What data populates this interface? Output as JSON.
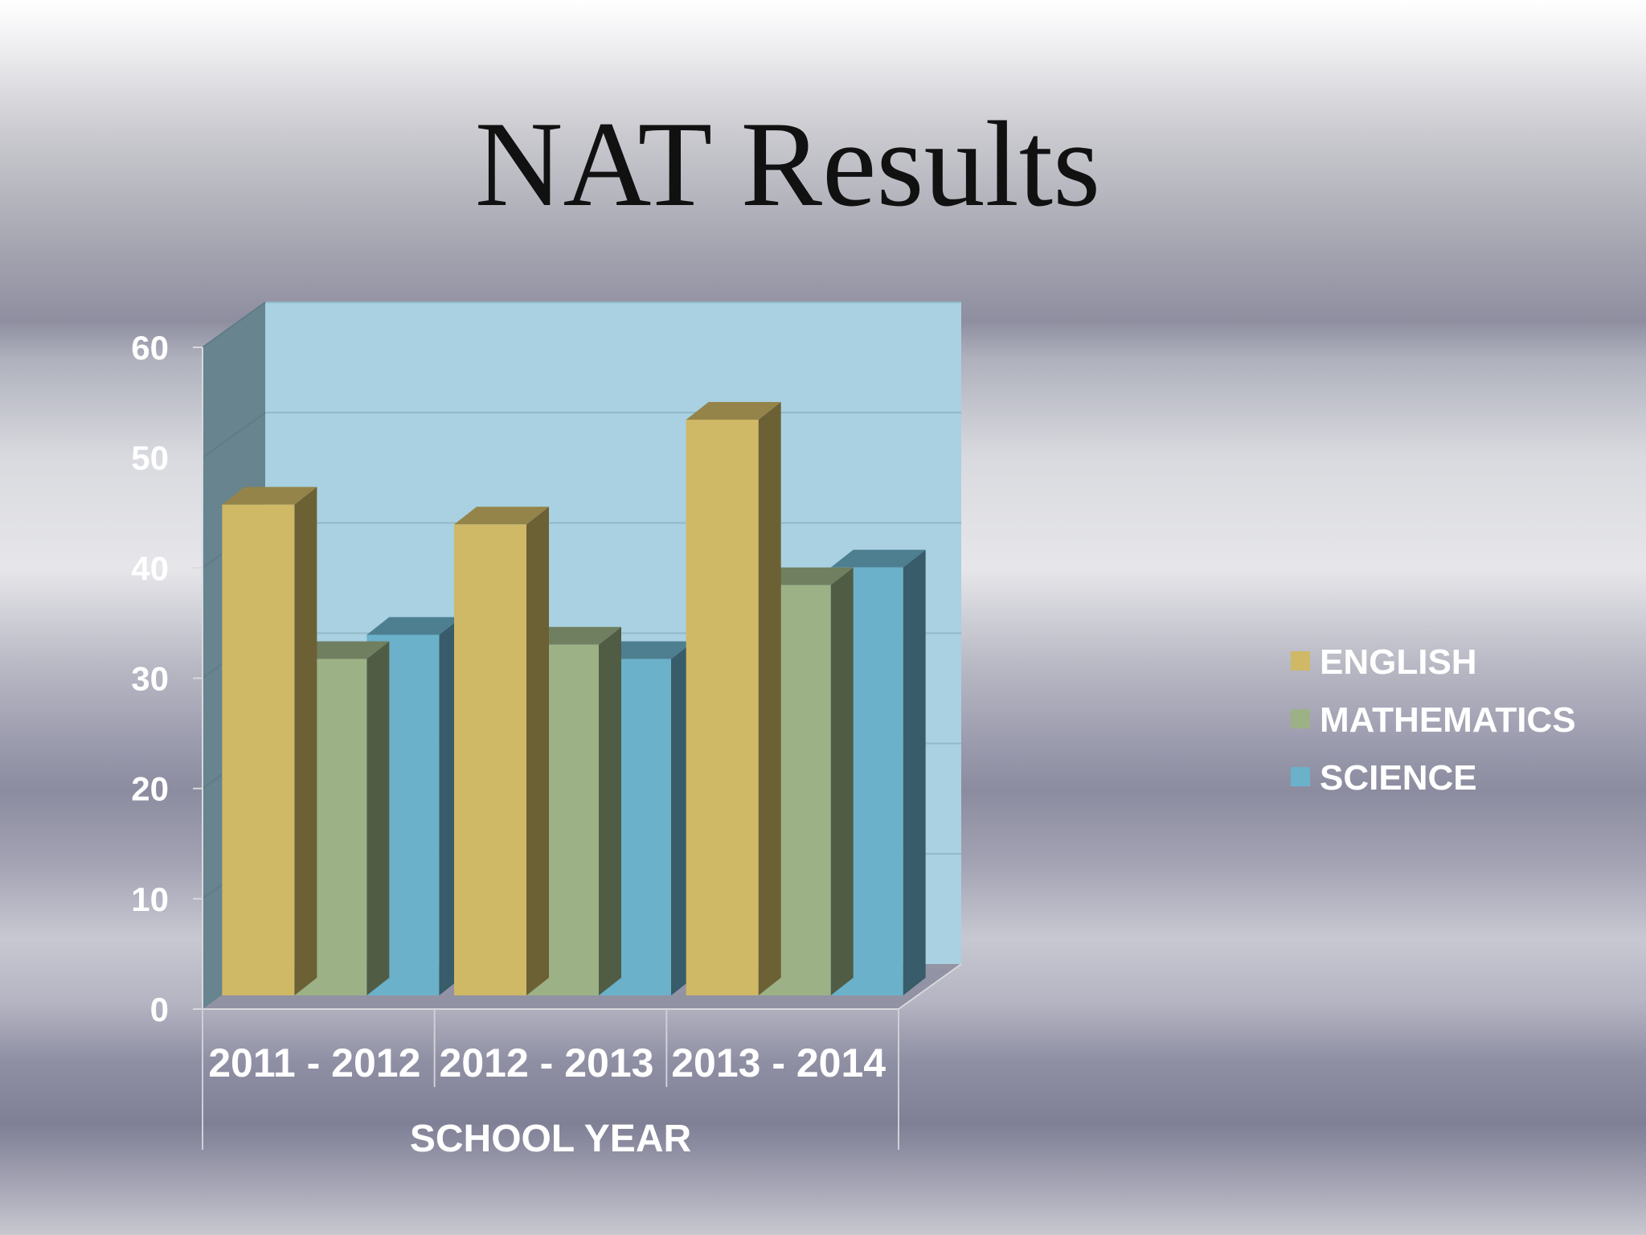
{
  "slide": {
    "title": "NAT Results"
  },
  "chart_data": {
    "type": "bar",
    "title": "",
    "categories": [
      "2011 - 2012",
      "2012 - 2013",
      "2013 - 2014"
    ],
    "series": [
      {
        "name": "ENGLISH",
        "values": [
          44.5,
          42.7,
          52.2
        ],
        "color": "#cfb866"
      },
      {
        "name": "MATHEMATICS",
        "values": [
          30.5,
          31.8,
          37.2
        ],
        "color": "#9cb185"
      },
      {
        "name": "SCIENCE",
        "values": [
          32.7,
          30.5,
          38.8
        ],
        "color": "#6bb1ca"
      }
    ],
    "xlabel": "SCHOOL YEAR",
    "ylabel": "",
    "ylim": [
      0,
      60
    ],
    "yticks": [
      0,
      10,
      20,
      30,
      40,
      50,
      60
    ],
    "grid": true,
    "legend": "right",
    "style": "3d-clustered-column"
  }
}
